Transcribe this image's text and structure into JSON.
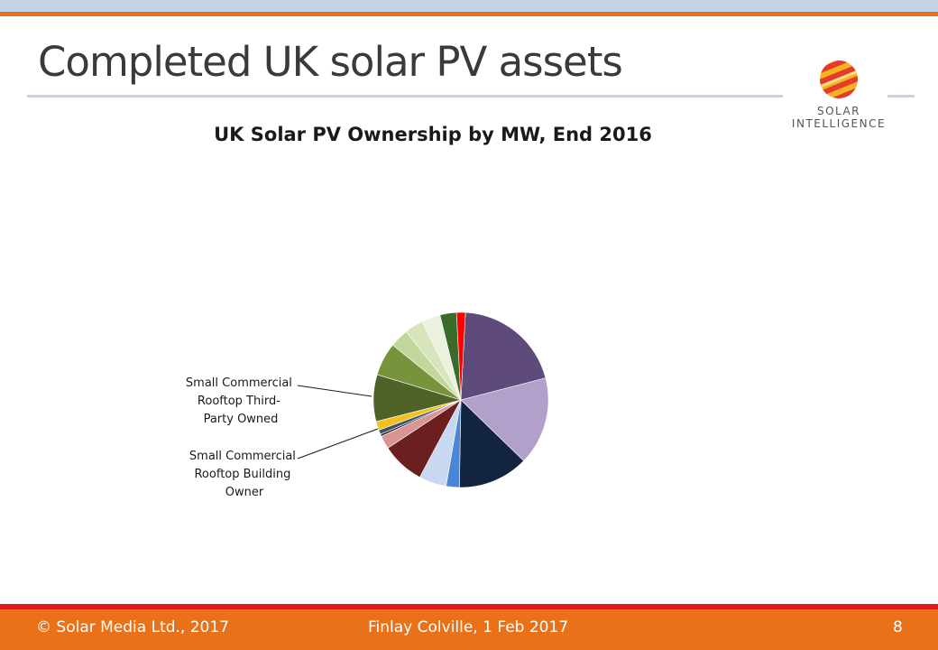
{
  "slide": {
    "title": "Completed UK solar PV assets",
    "logo_line1": "SOLAR",
    "logo_line2": "INTELLIGENCE"
  },
  "footer": {
    "copyright": "© Solar Media Ltd., 2017",
    "author_date": "Finlay Colville, 1 Feb 2017",
    "page_number": "8"
  },
  "chart_data": {
    "type": "pie",
    "title": "UK Solar PV Ownership by MW, End 2016",
    "start_angle_deg": 3,
    "slices": [
      {
        "label": "",
        "value": 19.8,
        "color": "#5e4a7b"
      },
      {
        "label": "",
        "value": 16.0,
        "color": "#b1a0c9"
      },
      {
        "label": "",
        "value": 12.8,
        "color": "#12243f"
      },
      {
        "label": "",
        "value": 2.4,
        "color": "#4a86d4"
      },
      {
        "label": "",
        "value": 5.0,
        "color": "#c7d8f0"
      },
      {
        "label": "Small Commercial Rooftop Building Owner",
        "value": 7.8,
        "color": "#6b1f1f"
      },
      {
        "label": "",
        "value": 2.4,
        "color": "#d99595"
      },
      {
        "label": "Small Commercial Rooftop Third-Party Owned",
        "value": 0.4,
        "color": "#222222"
      },
      {
        "label": "",
        "value": 0.8,
        "color": "#3f4f6b"
      },
      {
        "label": "",
        "value": 1.6,
        "color": "#f2c11b"
      },
      {
        "label": "",
        "value": 8.5,
        "color": "#4f6228"
      },
      {
        "label": "",
        "value": 6.0,
        "color": "#77933c"
      },
      {
        "label": "",
        "value": 3.4,
        "color": "#c3d69b"
      },
      {
        "label": "",
        "value": 3.4,
        "color": "#d7e4bc"
      },
      {
        "label": "",
        "value": 3.4,
        "color": "#ebf1de"
      },
      {
        "label": "",
        "value": 3.0,
        "color": "#3a6b2a"
      },
      {
        "label": "",
        "value": 1.6,
        "color": "#ff0000"
      }
    ],
    "callouts": [
      {
        "lines": [
          "Small Commercial",
          "Rooftop Third-",
          "Party Owned"
        ]
      },
      {
        "lines": [
          "Small Commercial",
          "Rooftop Building",
          "Owner"
        ]
      }
    ]
  }
}
